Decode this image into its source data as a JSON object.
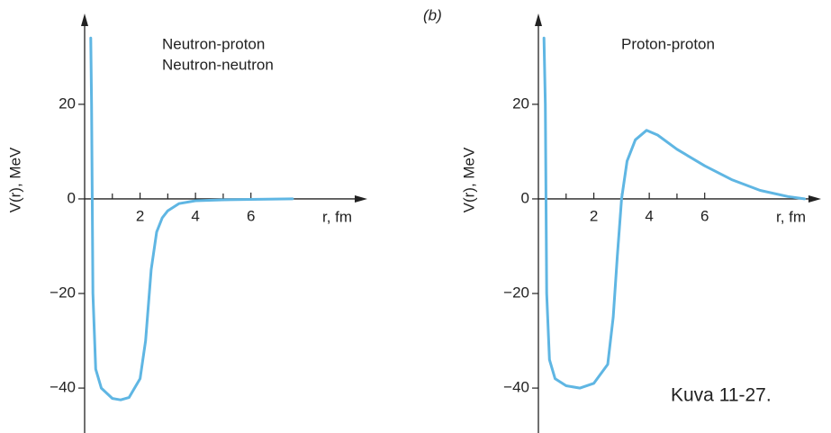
{
  "chart_data": [
    {
      "type": "line",
      "title": [
        "Neutron-proton",
        "Neutron-neutron"
      ],
      "y_label": "V(r), MeV",
      "x_label": "r, fm",
      "xlim": [
        0,
        10.2
      ],
      "ylim": [
        -49.5,
        39.2
      ],
      "xticks": [
        2,
        4,
        6
      ],
      "xminor_ticks": [
        1,
        3,
        5
      ],
      "yticks": [
        {
          "value": -40,
          "label": "−40"
        },
        {
          "value": -20,
          "label": "−20"
        },
        0,
        20
      ],
      "series": [
        {
          "color": "#5fb6e3",
          "x": [
            0.22,
            0.25,
            0.3,
            0.4,
            0.6,
            1.0,
            1.3,
            1.6,
            2.0,
            2.2,
            2.4,
            2.6,
            2.8,
            3.0,
            3.4,
            4.0,
            5.0,
            6.0,
            7.5
          ],
          "values": [
            34,
            20,
            -20,
            -36,
            -40,
            -42.2,
            -42.5,
            -42,
            -38,
            -30,
            -15,
            -7,
            -4,
            -2.5,
            -1,
            -0.4,
            -0.2,
            -0.1,
            0
          ]
        }
      ]
    },
    {
      "type": "line",
      "panel_label": "(b)",
      "title": [
        "Proton-proton"
      ],
      "y_label": "V(r), MeV",
      "x_label": "r, fm",
      "xlim": [
        0,
        10.2
      ],
      "ylim": [
        -49.5,
        39.2
      ],
      "xticks": [
        2,
        4,
        6
      ],
      "xminor_ticks": [
        1,
        3,
        5
      ],
      "yticks": [
        {
          "value": -40,
          "label": "−40"
        },
        {
          "value": -20,
          "label": "−20"
        },
        0,
        20
      ],
      "series": [
        {
          "color": "#5fb6e3",
          "x": [
            0.2,
            0.25,
            0.3,
            0.4,
            0.6,
            1.0,
            1.5,
            2.0,
            2.5,
            2.7,
            2.85,
            3.0,
            3.2,
            3.5,
            3.9,
            4.3,
            5.0,
            6.0,
            7.0,
            8.0,
            9.0,
            9.6
          ],
          "values": [
            34,
            20,
            -20,
            -34,
            -38,
            -39.5,
            -40,
            -39,
            -35,
            -25,
            -12,
            0,
            8,
            12.5,
            14.5,
            13.5,
            10.5,
            7,
            4,
            1.8,
            0.5,
            0
          ]
        }
      ]
    }
  ],
  "caption": "Kuva 11-27."
}
